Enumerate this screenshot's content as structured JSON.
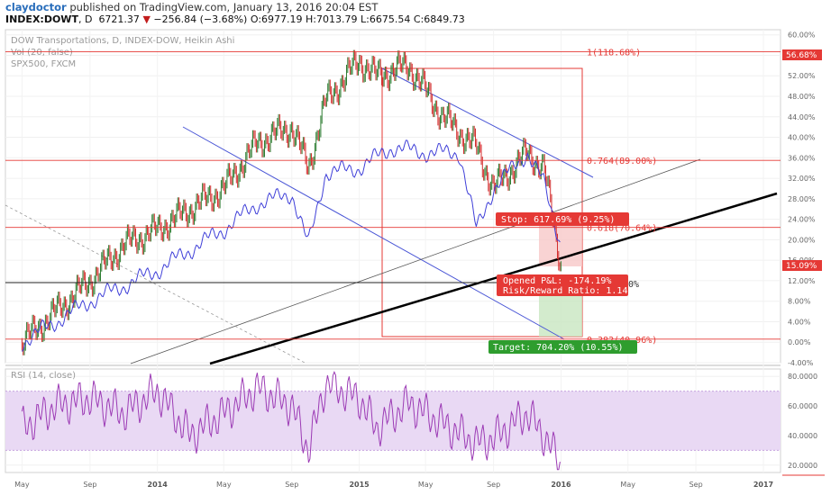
{
  "header": {
    "username": "claydoctor",
    "published": "published on TradingView.com, January 13, 2016 20:04 EST",
    "symbol": "INDEX:DOWT",
    "interval": "D",
    "last": "6721.37",
    "change_arrow": "▼",
    "change": "−256.84 (−3.68%)",
    "ohlc_o": "O:6977.19",
    "ohlc_h": "H:7013.79",
    "ohlc_l": "L:6675.54",
    "ohlc_c": "C:6849.73"
  },
  "legend": {
    "line1": "DOW Transportations, D, INDEX-DOW, Heikin Ashi",
    "line2": "Vol (20, false)",
    "line3": "SPX500, FXCM"
  },
  "colors": {
    "up": "#2e7d32",
    "down": "#d32f2f",
    "spx_line": "#3f3fd8",
    "fib_line": "#e53935",
    "channel": "#4a56d6",
    "rsi_line": "#9c3bb5",
    "rsi_band": "#e9d9f4"
  },
  "chart_data": [
    {
      "type": "line",
      "title": "DOW Transportations, D, INDEX-DOW, Heikin Ashi",
      "xlabel": "",
      "ylabel": "",
      "x_ticks": [
        "May",
        "Sep",
        "2014",
        "May",
        "Sep",
        "2015",
        "May",
        "Sep",
        "2016",
        "May",
        "Sep",
        "2017"
      ],
      "y_ticks": [
        "60.00%",
        "56.00%",
        "52.00%",
        "48.00%",
        "44.00%",
        "40.00%",
        "36.00%",
        "32.00%",
        "28.00%",
        "24.00%",
        "20.00%",
        "16.00%",
        "12.00%",
        "8.00%",
        "4.00%",
        "0.00%",
        "-4.00%"
      ],
      "ylim": [
        -4,
        61
      ],
      "series": [
        {
          "name": "DOW Transportations",
          "x": [
            "2013-05",
            "2013-07",
            "2013-09",
            "2013-11",
            "2014-01",
            "2014-03",
            "2014-05",
            "2014-07",
            "2014-09",
            "2014-10",
            "2014-11",
            "2015-01",
            "2015-02",
            "2015-04",
            "2015-06",
            "2015-08",
            "2015-09",
            "2015-11",
            "2015-12",
            "2016-01"
          ],
          "values": [
            0,
            6,
            12,
            19,
            22,
            26,
            30,
            39,
            42,
            34,
            47,
            55,
            52,
            54,
            44,
            38,
            30,
            37,
            34,
            15
          ]
        },
        {
          "name": "SPX500, FXCM",
          "x": [
            "2013-05",
            "2013-09",
            "2014-01",
            "2014-03",
            "2014-05",
            "2014-07",
            "2014-09",
            "2014-10",
            "2014-11",
            "2015-01",
            "2015-03",
            "2015-05",
            "2015-07",
            "2015-08",
            "2015-09",
            "2015-11",
            "2015-12",
            "2016-01"
          ],
          "values": [
            0,
            8,
            14,
            18,
            22,
            27,
            29,
            19,
            33,
            34,
            38,
            37,
            37,
            22,
            30,
            37,
            31,
            19
          ]
        }
      ],
      "fib_levels": [
        {
          "label": "1(118.68%)",
          "value": 56.68
        },
        {
          "label": "0.764(89.00%)",
          "value": 35.5
        },
        {
          "label": "0.618(70.64%)",
          "value": 22.4
        },
        {
          "label": "0.382(40.96%)",
          "value": 0.6
        }
      ],
      "last_value_tags": [
        "56.68%",
        "15.09%"
      ],
      "position": {
        "stop": "Stop: 617.69% (9.25%)",
        "pnl": "Opened P&L: -174.19%",
        "rr": "Risk/Reward Ratio: 1.14",
        "target": "Target: 704.20% (10.55%)",
        "partial_label": "0%"
      }
    },
    {
      "type": "line",
      "title": "RSI (14, close)",
      "y_ticks": [
        "80.0000",
        "60.0000",
        "40.0000",
        "20.0000"
      ],
      "ylim": [
        15,
        85
      ],
      "band": [
        30,
        70
      ],
      "series": [
        {
          "name": "RSI",
          "x": [
            "2013-05",
            "2013-07",
            "2013-09",
            "2013-11",
            "2014-01",
            "2014-03",
            "2014-05",
            "2014-07",
            "2014-09",
            "2014-10",
            "2014-11",
            "2015-01",
            "2015-02",
            "2015-04",
            "2015-06",
            "2015-08",
            "2015-09",
            "2015-11",
            "2015-12",
            "2016-01"
          ],
          "values": [
            45,
            60,
            65,
            55,
            70,
            40,
            55,
            72,
            60,
            30,
            75,
            65,
            45,
            62,
            48,
            35,
            38,
            55,
            40,
            20
          ]
        }
      ]
    }
  ]
}
